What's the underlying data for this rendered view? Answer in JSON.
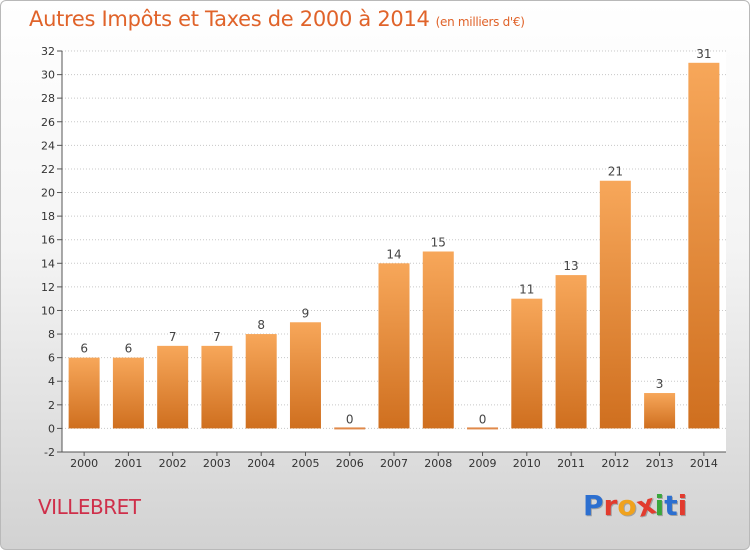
{
  "title": "Autres Impôts et Taxes de 2000 à 2014",
  "unit": "(en milliers d'€)",
  "commune": "VILLEBRET",
  "logo": "Proxiti",
  "colors": {
    "title": "#e0632a",
    "commune": "#cf2f4a",
    "bar_light": "#f7a75a",
    "bar_dark": "#cf6f1f",
    "logo": [
      "#2c6fd0",
      "#e23b2e",
      "#f0a21d",
      "#e23b2e",
      "#3aa63b",
      "#2c6fd0",
      "#e23b2e"
    ]
  },
  "chart_data": {
    "type": "bar",
    "categories": [
      "2000",
      "2001",
      "2002",
      "2003",
      "2004",
      "2005",
      "2006",
      "2007",
      "2008",
      "2009",
      "2010",
      "2011",
      "2012",
      "2013",
      "2014"
    ],
    "values": [
      6,
      6,
      7,
      7,
      8,
      9,
      0,
      14,
      15,
      0,
      11,
      13,
      21,
      3,
      31
    ],
    "data_labels": [
      "6",
      "6",
      "7",
      "7",
      "8",
      "9",
      "0",
      "14",
      "15",
      "0",
      "11",
      "13",
      "21",
      "3",
      "31"
    ],
    "yticks": [
      "-2",
      "0",
      "2",
      "4",
      "6",
      "8",
      "10",
      "12",
      "14",
      "16",
      "18",
      "20",
      "22",
      "24",
      "26",
      "28",
      "30",
      "32"
    ],
    "ylim": [
      -2,
      32
    ],
    "grid": "horizontal dotted",
    "legend": "none"
  }
}
